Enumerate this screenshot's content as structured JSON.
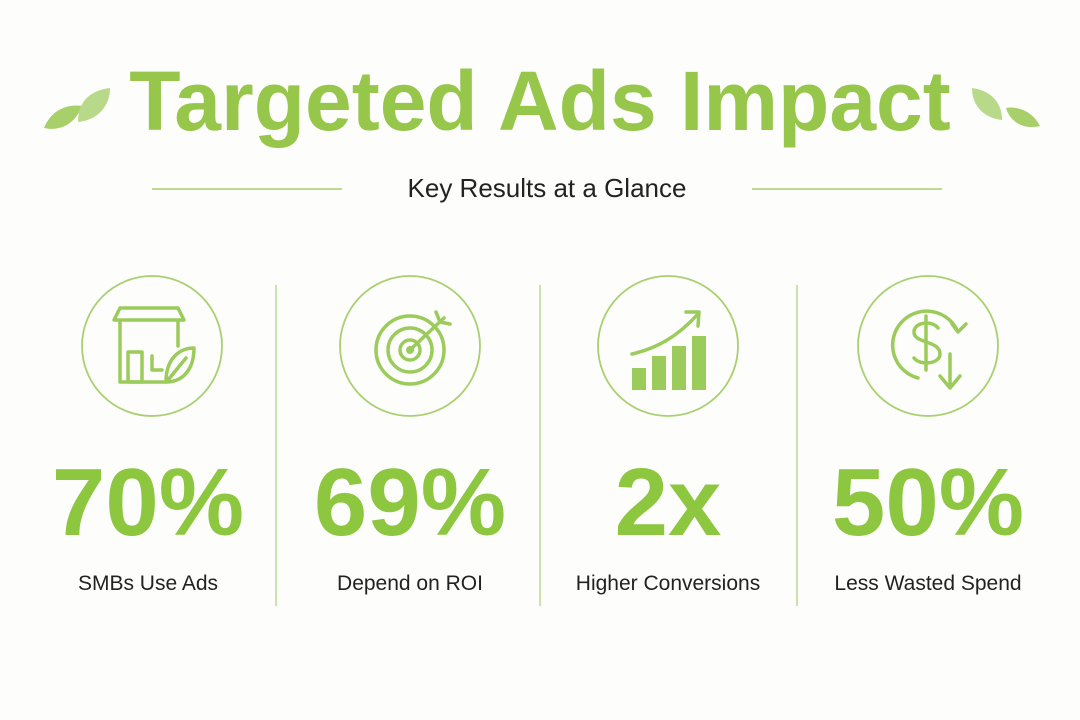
{
  "header": {
    "title": "Targeted Ads Impact",
    "subtitle": "Key Results at a Glance"
  },
  "stats": [
    {
      "value": "70%",
      "label": "SMBs Use Ads"
    },
    {
      "value": "69%",
      "label": "Depend on ROI"
    },
    {
      "value": "2x",
      "label": "Higher Conversions"
    },
    {
      "value": "50%",
      "label": "Less Wasted Spend"
    }
  ]
}
